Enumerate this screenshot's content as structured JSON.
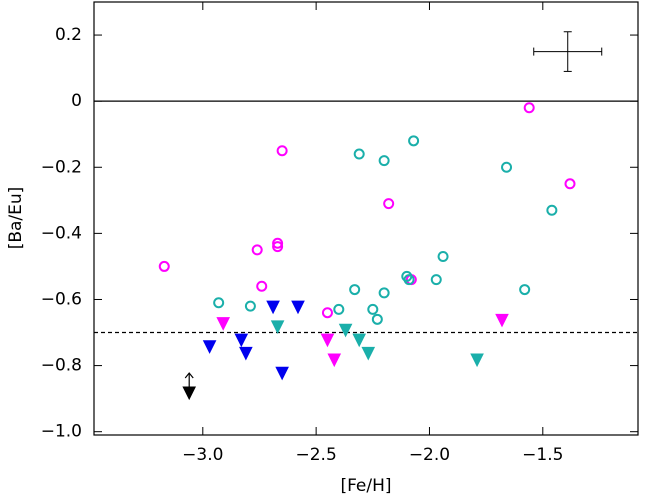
{
  "chart_data": {
    "type": "scatter",
    "x_label": "[Fe/H]",
    "y_label": "[Ba/Eu]",
    "xlim": [
      -3.48,
      -1.08
    ],
    "ylim": [
      -1.01,
      0.3
    ],
    "xticks": [
      {
        "value": -3.0,
        "label": "−3.0"
      },
      {
        "value": -2.5,
        "label": "−2.5"
      },
      {
        "value": -2.0,
        "label": "−2.0"
      },
      {
        "value": -1.5,
        "label": "−1.5"
      }
    ],
    "yticks": [
      0.2,
      0,
      {
        "value": -0.2,
        "label": "−0.2"
      },
      {
        "value": -0.4,
        "label": "−0.4"
      },
      {
        "value": -0.6,
        "label": "−0.6"
      },
      {
        "value": -0.8,
        "label": "−0.8"
      },
      {
        "value": -1.0,
        "label": "−1.0"
      }
    ],
    "hlines": [
      {
        "y": 0,
        "style": "solid"
      },
      {
        "y": -0.7,
        "style": "dashed"
      }
    ],
    "error_bar": {
      "x": -1.39,
      "y": 0.15,
      "xerr": 0.15,
      "yerr": 0.06
    },
    "series": [
      {
        "color": "#ff00ff",
        "marker": "circle",
        "filled": false,
        "x": [
          -3.17,
          -2.65,
          -2.76,
          -2.67,
          -2.67,
          -2.74,
          -2.45,
          -2.18,
          -2.08,
          -1.56,
          -1.38
        ],
        "values": [
          -0.5,
          -0.15,
          -0.45,
          -0.43,
          -0.44,
          -0.56,
          -0.64,
          -0.31,
          -0.54,
          -0.02,
          -0.25
        ]
      },
      {
        "color": "#1aafaa",
        "marker": "circle",
        "filled": false,
        "x": [
          -2.93,
          -2.79,
          -2.4,
          -2.31,
          -2.2,
          -2.07,
          -2.33,
          -2.25,
          -2.23,
          -2.2,
          -2.1,
          -2.09,
          -1.97,
          -1.94,
          -1.66,
          -1.58,
          -1.46
        ],
        "values": [
          -0.61,
          -0.62,
          -0.63,
          -0.16,
          -0.18,
          -0.12,
          -0.57,
          -0.63,
          -0.66,
          -0.58,
          -0.53,
          -0.54,
          -0.54,
          -0.47,
          -0.2,
          -0.57,
          -0.33
        ]
      },
      {
        "color": "#0000ee",
        "marker": "triangle",
        "filled": true,
        "x": [
          -2.97,
          -2.83,
          -2.81,
          -2.69,
          -2.58,
          -2.65
        ],
        "values": [
          -0.74,
          -0.72,
          -0.76,
          -0.62,
          -0.62,
          -0.82
        ]
      },
      {
        "color": "#ff00ff",
        "marker": "triangle",
        "filled": true,
        "x": [
          -2.91,
          -2.45,
          -2.42,
          -1.68
        ],
        "values": [
          -0.67,
          -0.72,
          -0.78,
          -0.66
        ]
      },
      {
        "color": "#1aafaa",
        "marker": "triangle",
        "filled": true,
        "x": [
          -2.67,
          -2.37,
          -2.31,
          -2.27,
          -1.79
        ],
        "values": [
          -0.68,
          -0.69,
          -0.72,
          -0.76,
          -0.78
        ]
      },
      {
        "color": "#000000",
        "marker": "triangle",
        "filled": true,
        "limit": "lower",
        "x": [
          -3.06
        ],
        "values": [
          -0.88
        ]
      }
    ]
  }
}
